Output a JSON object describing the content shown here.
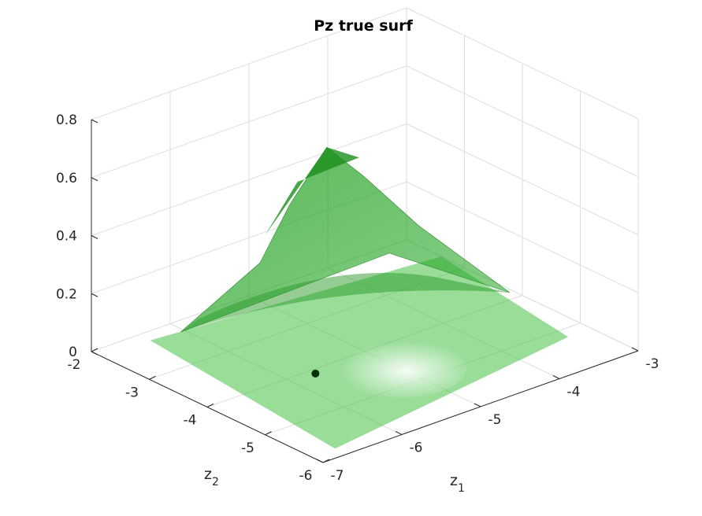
{
  "chart_data": {
    "type": "surface",
    "title": "Pz true surf",
    "xlabel": "z",
    "xlabel_sub": "1",
    "ylabel": "z",
    "ylabel_sub": "2",
    "zlabel": "",
    "xlim": [
      -7,
      -3
    ],
    "ylim": [
      -6,
      -2
    ],
    "zlim": [
      0,
      0.8
    ],
    "x_ticks": [
      "-7",
      "-6",
      "-5",
      "-4",
      "-3"
    ],
    "y_ticks": [
      "-6",
      "-5",
      "-4",
      "-3",
      "-2"
    ],
    "z_ticks": [
      "0",
      "0.2",
      "0.4",
      "0.6",
      "0.8"
    ],
    "grid": true,
    "surface_color": "#33bb33",
    "surface_alpha": 0.5,
    "peak": {
      "z1": -4.6,
      "z2": -2.8,
      "value": 0.55
    },
    "marker": {
      "z1": -5.7,
      "z2": -4.1,
      "value": 0,
      "color": "#003300"
    }
  }
}
